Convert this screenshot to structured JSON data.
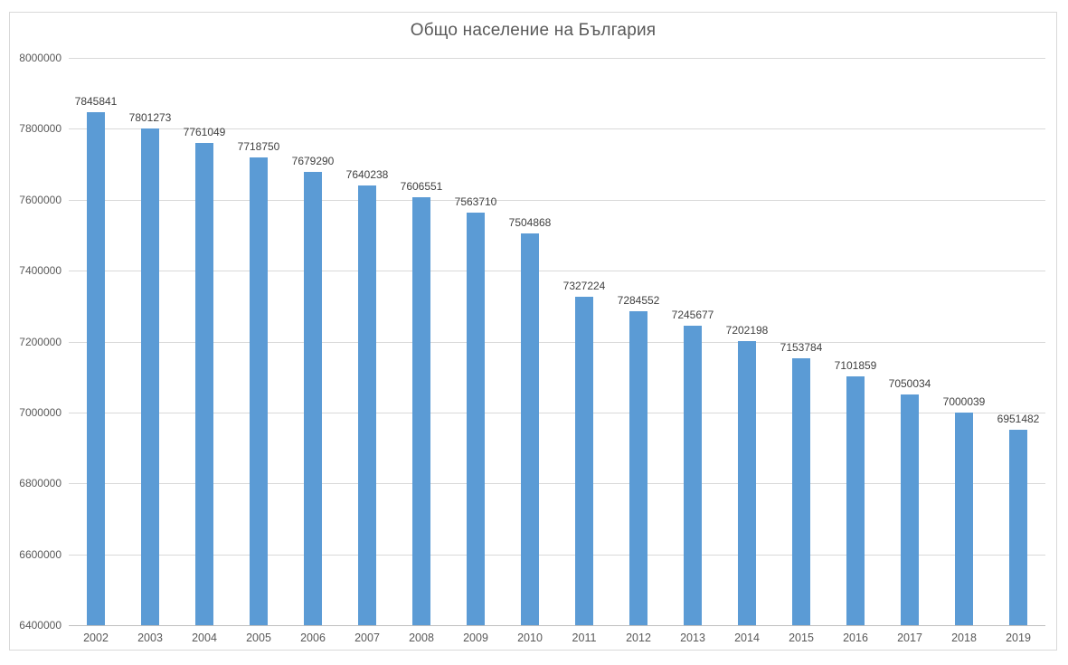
{
  "chart_data": {
    "type": "bar",
    "title": "Общо население на България",
    "categories": [
      "2002",
      "2003",
      "2004",
      "2005",
      "2006",
      "2007",
      "2008",
      "2009",
      "2010",
      "2011",
      "2012",
      "2013",
      "2014",
      "2015",
      "2016",
      "2017",
      "2018",
      "2019"
    ],
    "values": [
      7845841,
      7801273,
      7761049,
      7718750,
      7679290,
      7640238,
      7606551,
      7563710,
      7504868,
      7327224,
      7284552,
      7245677,
      7202198,
      7153784,
      7101859,
      7050034,
      7000039,
      6951482
    ],
    "data_labels": [
      "7845841",
      "7801273",
      "7761049",
      "7718750",
      "7679290",
      "7640238",
      "7606551",
      "7563710",
      "7504868",
      "7327224",
      "7284552",
      "7245677",
      "7202198",
      "7153784",
      "7101859",
      "7050034",
      "7000039",
      "6951482"
    ],
    "xlabel": "",
    "ylabel": "",
    "ylim": [
      6400000,
      8000000
    ],
    "ytick_step": 200000,
    "ytick_labels": [
      "6400000",
      "6600000",
      "6800000",
      "7000000",
      "7200000",
      "7400000",
      "7600000",
      "7800000",
      "8000000"
    ],
    "grid": "horizontal",
    "legend": "none",
    "bar_color": "#5b9bd5",
    "gridline_color": "#d9d9d9",
    "axis_line_color": "#bfbfbf",
    "axis_text_color": "#595959",
    "data_label_color": "#404040",
    "title_color": "#595959",
    "frame_border_color": "#d9d9d9",
    "background_color": "#ffffff"
  }
}
